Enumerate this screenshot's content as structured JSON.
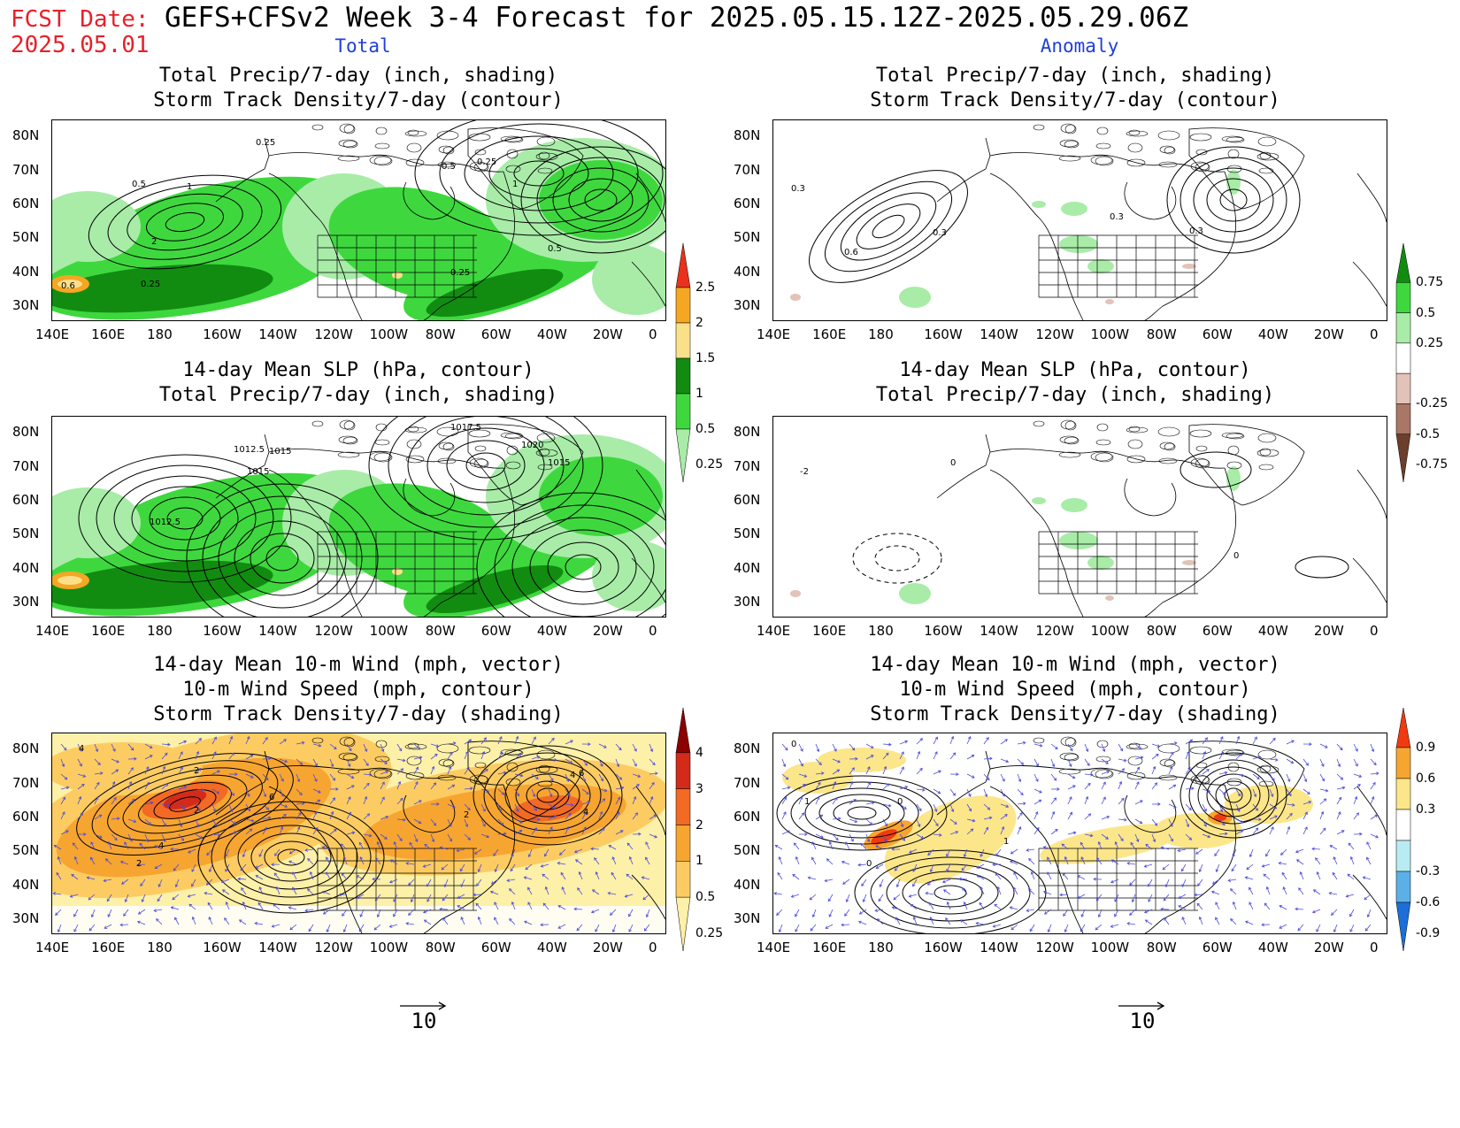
{
  "header": {
    "fcst_label": "FCST Date:",
    "fcst_date": "2025.05.01",
    "title": "GEFS+CFSv2 Week 3-4 Forecast for 2025.05.15.12Z-2025.05.29.06Z",
    "col_total": "Total",
    "col_anomaly": "Anomaly"
  },
  "axes": {
    "lat_labels": [
      "80N",
      "70N",
      "60N",
      "50N",
      "40N",
      "30N"
    ],
    "lon_labels": [
      "140E",
      "160E",
      "180",
      "160W",
      "140W",
      "120W",
      "100W",
      "80W",
      "60W",
      "40W",
      "20W",
      "0"
    ]
  },
  "panels": {
    "p1": {
      "t1": "Total Precip/7-day (inch, shading)",
      "t2": "Storm Track Density/7-day (contour)",
      "contour_labels": [
        "0.25",
        "0.5",
        "1",
        "0.5",
        "0.25",
        "1",
        "2",
        "0.5",
        "0.6",
        "0.25",
        "0.25"
      ]
    },
    "p2": {
      "t1": "Total Precip/7-day (inch, shading)",
      "t2": "Storm Track Density/7-day (contour)",
      "contour_labels": [
        "0.3",
        "0.3",
        "0.6",
        "0.3",
        "0.3"
      ]
    },
    "p3": {
      "t1": "14-day Mean SLP (hPa, contour)",
      "t2": "Total Precip/7-day (inch, shading)",
      "contour_labels": [
        "1017.5",
        "1012.5",
        "1015",
        "1015",
        "1020",
        "1015",
        "1012.5"
      ]
    },
    "p4": {
      "t1": "14-day Mean SLP (hPa, contour)",
      "t2": "Total Precip/7-day (inch, shading)",
      "contour_labels": [
        "0",
        "-2",
        "0"
      ]
    },
    "p5": {
      "t1": "14-day Mean 10-m Wind (mph, vector)",
      "t2": "10-m Wind Speed (mph, contour)",
      "t3": "Storm Track Density/7-day (shading)",
      "contour_labels": [
        "4",
        "2",
        "6",
        "4",
        "2",
        "4",
        "6",
        "4",
        "2",
        "2"
      ]
    },
    "p6": {
      "t1": "14-day Mean 10-m Wind (mph, vector)",
      "t2": "10-m Wind Speed (mph, contour)",
      "t3": "Storm Track Density/7-day (shading)",
      "contour_labels": [
        "0",
        "1",
        "0",
        "0",
        "1"
      ]
    }
  },
  "colorbars": {
    "precip_total": {
      "labels": [
        "2.5",
        "2",
        "1.5",
        "1",
        "0.5",
        "0.25"
      ],
      "colors": [
        "#e8321e",
        "#f5a623",
        "#fbe08a",
        "#118c11",
        "#3ed83e",
        "#a8eca8"
      ]
    },
    "precip_anom": {
      "labels": [
        "0.75",
        "0.5",
        "0.25",
        "-0.25",
        "-0.5",
        "-0.75"
      ],
      "colors": [
        "#118c11",
        "#3ed83e",
        "#a8eca8",
        "#ffffff",
        "#e3c3b8",
        "#a97765",
        "#6b3f2c"
      ]
    },
    "storm_total": {
      "labels": [
        "4",
        "3",
        "2",
        "1",
        "0.5",
        "0.25"
      ],
      "colors": [
        "#8b0000",
        "#d42a1a",
        "#f26a24",
        "#f7a531",
        "#fccc62",
        "#fdf0a8"
      ]
    },
    "storm_anom": {
      "labels": [
        "0.9",
        "0.6",
        "0.3",
        "-0.3",
        "-0.6",
        "-0.9"
      ],
      "colors": [
        "#f03a10",
        "#f7a531",
        "#fbe68a",
        "#ffffff",
        "#b8ecf2",
        "#5cb0e8",
        "#1c6fd8"
      ]
    }
  },
  "vector_ref": {
    "left": "10",
    "right": "10"
  }
}
